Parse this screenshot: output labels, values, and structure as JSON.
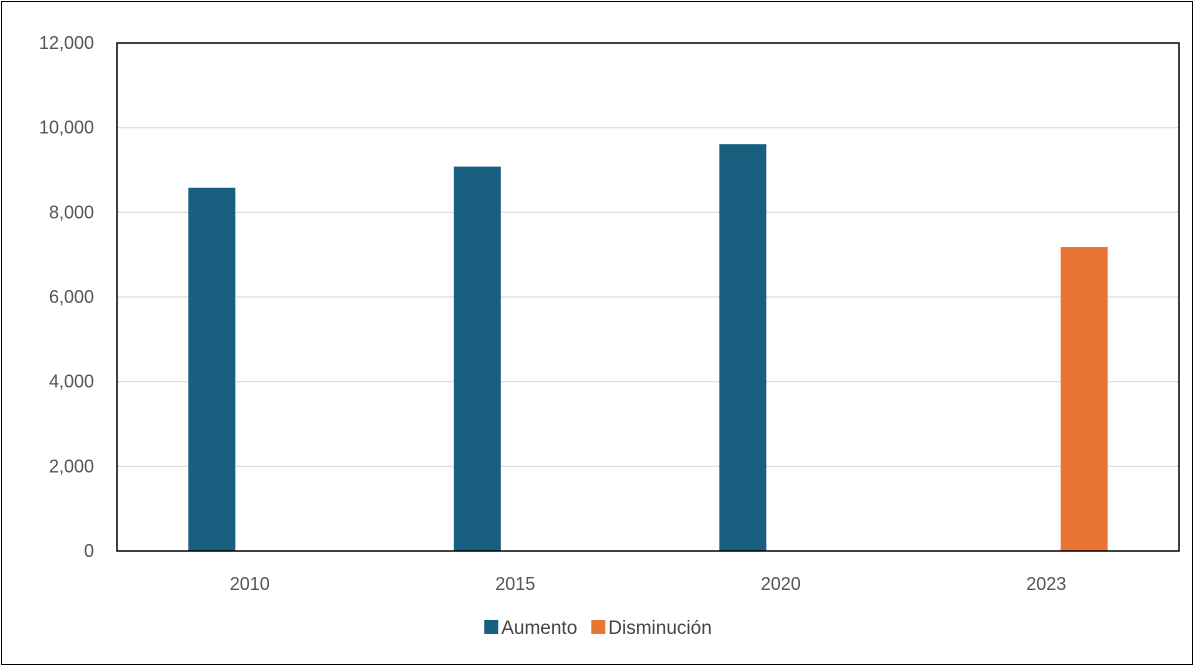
{
  "chart_data": {
    "type": "bar",
    "categories": [
      "2010",
      "2015",
      "2020",
      "2023"
    ],
    "series": [
      {
        "name": "Aumento",
        "color": "#185f80",
        "values": [
          8580,
          9080,
          9610,
          null
        ]
      },
      {
        "name": "Disminución",
        "color": "#e97434",
        "values": [
          null,
          null,
          null,
          7180
        ]
      }
    ],
    "ylim": [
      0,
      12000
    ],
    "yticks": [
      0,
      2000,
      4000,
      6000,
      8000,
      10000,
      12000
    ],
    "ytick_labels": [
      "0",
      "2,000",
      "4,000",
      "6,000",
      "8,000",
      "10,000",
      "12,000"
    ],
    "grid": true,
    "legend_position": "bottom",
    "xlabel": "",
    "ylabel": ""
  }
}
